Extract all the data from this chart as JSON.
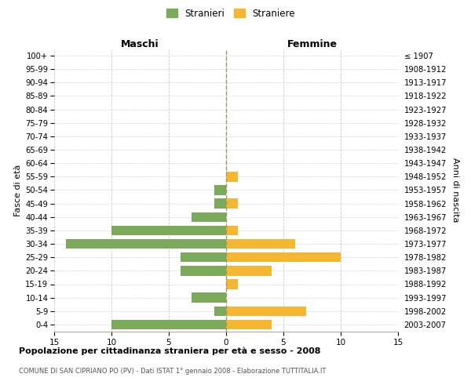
{
  "age_groups": [
    "100+",
    "95-99",
    "90-94",
    "85-89",
    "80-84",
    "75-79",
    "70-74",
    "65-69",
    "60-64",
    "55-59",
    "50-54",
    "45-49",
    "40-44",
    "35-39",
    "30-34",
    "25-29",
    "20-24",
    "15-19",
    "10-14",
    "5-9",
    "0-4"
  ],
  "birth_years": [
    "≤ 1907",
    "1908-1912",
    "1913-1917",
    "1918-1922",
    "1923-1927",
    "1928-1932",
    "1933-1937",
    "1938-1942",
    "1943-1947",
    "1948-1952",
    "1953-1957",
    "1958-1962",
    "1963-1967",
    "1968-1972",
    "1973-1977",
    "1978-1982",
    "1983-1987",
    "1988-1992",
    "1993-1997",
    "1998-2002",
    "2003-2007"
  ],
  "males": [
    0,
    0,
    0,
    0,
    0,
    0,
    0,
    0,
    0,
    0,
    1,
    1,
    3,
    10,
    14,
    4,
    4,
    0,
    3,
    1,
    10
  ],
  "females": [
    0,
    0,
    0,
    0,
    0,
    0,
    0,
    0,
    0,
    1,
    0,
    1,
    0,
    1,
    6,
    10,
    4,
    1,
    0,
    7,
    4
  ],
  "male_color": "#7aaa5a",
  "female_color": "#f5b731",
  "male_label": "Stranieri",
  "female_label": "Straniere",
  "title": "Popolazione per cittadinanza straniera per età e sesso - 2008",
  "subtitle": "COMUNE DI SAN CIPRIANO PO (PV) - Dati ISTAT 1° gennaio 2008 - Elaborazione TUTTITALIA.IT",
  "ylabel_left": "Fasce di età",
  "ylabel_right": "Anni di nascita",
  "xlabel_left": "Maschi",
  "xlabel_right": "Femmine",
  "xlim": 15,
  "background_color": "#ffffff",
  "grid_color": "#cccccc"
}
